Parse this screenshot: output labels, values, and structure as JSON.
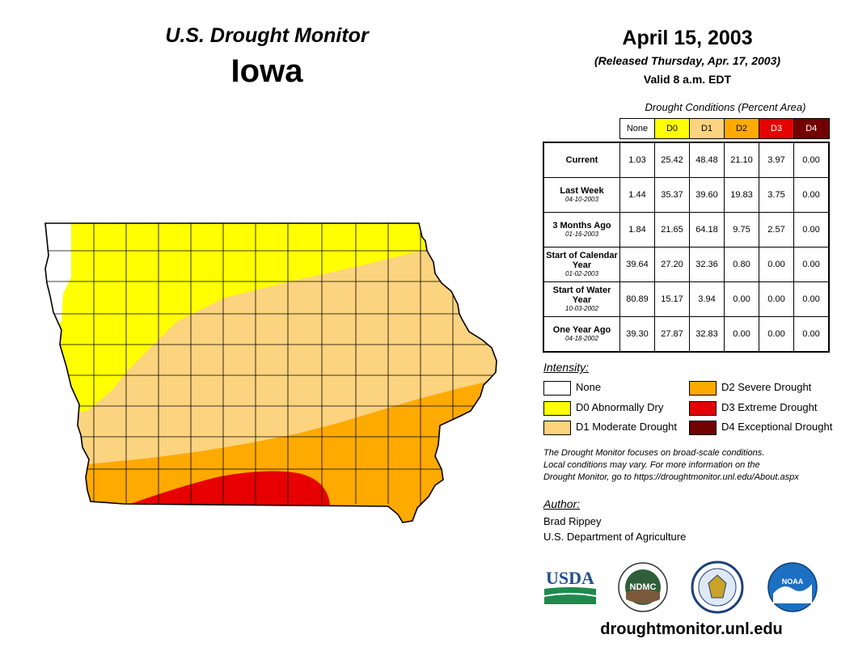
{
  "header": {
    "title": "U.S. Drought Monitor",
    "state": "Iowa",
    "date": "April 15, 2003",
    "released": "(Released Thursday, Apr. 17, 2003)",
    "valid": "Valid 8 a.m. EDT"
  },
  "table": {
    "title": "Drought Conditions (Percent Area)",
    "columns": [
      {
        "label": "None",
        "color": "#ffffff"
      },
      {
        "label": "D0",
        "color": "#ffff00"
      },
      {
        "label": "D1",
        "color": "#fcd37f"
      },
      {
        "label": "D2",
        "color": "#ffaa00"
      },
      {
        "label": "D3",
        "color": "#e60000"
      },
      {
        "label": "D4",
        "color": "#730000"
      }
    ],
    "rows": [
      {
        "label": "Current",
        "date": "",
        "values": [
          "1.03",
          "25.42",
          "48.48",
          "21.10",
          "3.97",
          "0.00"
        ]
      },
      {
        "label": "Last Week",
        "date": "04-10-2003",
        "values": [
          "1.44",
          "35.37",
          "39.60",
          "19.83",
          "3.75",
          "0.00"
        ]
      },
      {
        "label": "3 Months Ago",
        "date": "01-16-2003",
        "values": [
          "1.84",
          "21.65",
          "64.18",
          "9.75",
          "2.57",
          "0.00"
        ]
      },
      {
        "label": "Start of Calendar Year",
        "date": "01-02-2003",
        "values": [
          "39.64",
          "27.20",
          "32.36",
          "0.80",
          "0.00",
          "0.00"
        ]
      },
      {
        "label": "Start of Water Year",
        "date": "10-03-2002",
        "values": [
          "80.89",
          "15.17",
          "3.94",
          "0.00",
          "0.00",
          "0.00"
        ]
      },
      {
        "label": "One Year Ago",
        "date": "04-18-2002",
        "values": [
          "39.30",
          "27.87",
          "32.83",
          "0.00",
          "0.00",
          "0.00"
        ]
      }
    ]
  },
  "legend": {
    "title": "Intensity:",
    "items": [
      {
        "label": "None",
        "color": "#ffffff"
      },
      {
        "label": "D0 Abnormally Dry",
        "color": "#ffff00"
      },
      {
        "label": "D1 Moderate Drought",
        "color": "#fcd37f"
      },
      {
        "label": "D2 Severe Drought",
        "color": "#ffaa00"
      },
      {
        "label": "D3 Extreme Drought",
        "color": "#e60000"
      },
      {
        "label": "D4 Exceptional Drought",
        "color": "#730000"
      }
    ]
  },
  "note": {
    "line1": "The Drought Monitor focuses on broad-scale conditions.",
    "line2": "Local conditions may vary. For more information on the",
    "line3": "Drought Monitor, go to https://droughtmonitor.unl.edu/About.aspx"
  },
  "author": {
    "title": "Author:",
    "name": "Brad Rippey",
    "org": "U.S. Department of Agriculture"
  },
  "logos": {
    "usda": "USDA",
    "ndmc": "NDMC",
    "noaa": "NOAA"
  },
  "footer": {
    "url": "droughtmonitor.unl.edu"
  }
}
